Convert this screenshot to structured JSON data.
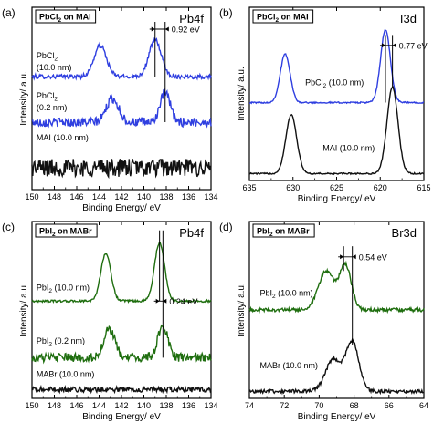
{
  "colors": {
    "blue": "#2f3fe0",
    "black": "#111111",
    "green": "#1f6e0f",
    "frame": "#000000"
  },
  "chart_data": [
    {
      "panel_label": "(a)",
      "type": "line",
      "legend_box": "PbCl2 on MAI",
      "core_level": "Pb4f",
      "xlabel": "Binding Energy/ eV",
      "ylabel": "Intensity/ a.u.",
      "xlim": [
        150,
        134
      ],
      "xticks": [
        150,
        148,
        146,
        144,
        142,
        140,
        138,
        136,
        134
      ],
      "xtick_labels": [
        "150",
        "148",
        "146",
        "144",
        "142",
        "140",
        "138",
        "136",
        "134"
      ],
      "ylim": [
        0,
        1
      ],
      "annotations": [
        {
          "text": "0.92 eV",
          "x1": 139.0,
          "x2": 138.1,
          "y": 0.88
        }
      ],
      "series": [
        {
          "label_lines": [
            "PbCl2",
            "(10.0 nm)"
          ],
          "color": "blue",
          "offset": 0.62,
          "noise": 0.012,
          "peaks": [
            {
              "x": 143.9,
              "height": 0.17,
              "width": 0.55
            },
            {
              "x": 139.0,
              "height": 0.2,
              "width": 0.55
            }
          ],
          "label_pos": {
            "x": 149.6,
            "y": 0.72
          }
        },
        {
          "label_lines": [
            "PbCl2",
            "(0.2 nm)"
          ],
          "color": "blue",
          "offset": 0.37,
          "noise": 0.025,
          "peaks": [
            {
              "x": 142.8,
              "height": 0.13,
              "width": 0.55
            },
            {
              "x": 138.1,
              "height": 0.16,
              "width": 0.45
            }
          ],
          "label_pos": {
            "x": 149.6,
            "y": 0.5
          }
        },
        {
          "label_lines": [
            "MAI (10.0 nm)"
          ],
          "color": "black",
          "offset": 0.12,
          "noise": 0.05,
          "peaks": [],
          "label_pos": {
            "x": 149.6,
            "y": 0.27
          }
        }
      ],
      "marker_lines": [
        {
          "x": 139.0,
          "y1": 0.62,
          "y2": 0.92
        },
        {
          "x": 138.1,
          "y1": 0.37,
          "y2": 0.92
        }
      ]
    },
    {
      "panel_label": "(b)",
      "type": "line",
      "legend_box": "PbCl2 on MAI",
      "core_level": "I3d",
      "xlabel": "Binding Energy/ eV",
      "ylabel": "Intensity/ a.u.",
      "xlim": [
        635,
        615
      ],
      "xticks": [
        635,
        630,
        625,
        620,
        615
      ],
      "xtick_labels": [
        "635",
        "630",
        "625",
        "620",
        "615"
      ],
      "ylim": [
        0,
        1
      ],
      "annotations": [
        {
          "text": "0.77 eV",
          "x1": 619.4,
          "x2": 618.6,
          "y": 0.78
        }
      ],
      "series": [
        {
          "label_lines": [
            "PbCl2 (10.0 nm)"
          ],
          "color": "blue",
          "offset": 0.45,
          "noise": 0.004,
          "peaks": [
            {
              "x": 630.9,
              "height": 0.28,
              "width": 0.45
            },
            {
              "x": 619.4,
              "height": 0.42,
              "width": 0.45
            }
          ],
          "label_pos": {
            "x": 628.6,
            "y": 0.55
          }
        },
        {
          "label_lines": [
            "MAI (10.0 nm)"
          ],
          "color": "black",
          "offset": 0.04,
          "noise": 0.004,
          "peaks": [
            {
              "x": 630.2,
              "height": 0.34,
              "width": 0.5
            },
            {
              "x": 618.6,
              "height": 0.5,
              "width": 0.5
            }
          ],
          "label_pos": {
            "x": 626.6,
            "y": 0.17
          }
        }
      ],
      "marker_lines": [
        {
          "x": 619.4,
          "y1": 0.45,
          "y2": 0.84
        },
        {
          "x": 618.6,
          "y1": 0.54,
          "y2": 0.84
        }
      ]
    },
    {
      "panel_label": "(c)",
      "type": "line",
      "legend_box": "PbI2 on MABr",
      "core_level": "Pb4f",
      "xlabel": "Binding Energy/ eV",
      "ylabel": "Intensity/ a.u.",
      "xlim": [
        150,
        134
      ],
      "xticks": [
        150,
        148,
        146,
        144,
        142,
        140,
        138,
        136,
        134
      ],
      "xtick_labels": [
        "150",
        "148",
        "146",
        "144",
        "142",
        "140",
        "138",
        "136",
        "134"
      ],
      "ylim": [
        0,
        1
      ],
      "annotations": [
        {
          "text": "0.24 eV",
          "x1": 138.6,
          "x2": 138.3,
          "y": 0.55
        }
      ],
      "series": [
        {
          "label_lines": [
            "PbI2 (10.0 nm)"
          ],
          "color": "green",
          "offset": 0.55,
          "noise": 0.006,
          "peaks": [
            {
              "x": 143.4,
              "height": 0.27,
              "width": 0.45
            },
            {
              "x": 138.6,
              "height": 0.33,
              "width": 0.45
            }
          ],
          "label_pos": {
            "x": 149.6,
            "y": 0.61
          }
        },
        {
          "label_lines": [
            "PbI2 (0.2 nm)"
          ],
          "color": "green",
          "offset": 0.23,
          "noise": 0.025,
          "peaks": [
            {
              "x": 143.1,
              "height": 0.16,
              "width": 0.5
            },
            {
              "x": 138.3,
              "height": 0.18,
              "width": 0.45
            }
          ],
          "label_pos": {
            "x": 149.6,
            "y": 0.31
          }
        },
        {
          "label_lines": [
            "MABr (10.0 nm)"
          ],
          "color": "black",
          "offset": 0.05,
          "noise": 0.015,
          "peaks": [],
          "label_pos": {
            "x": 149.6,
            "y": 0.12
          }
        }
      ],
      "marker_lines": [
        {
          "x": 138.6,
          "y1": 0.55,
          "y2": 0.95
        },
        {
          "x": 138.3,
          "y1": 0.23,
          "y2": 0.95
        }
      ]
    },
    {
      "panel_label": "(d)",
      "type": "line",
      "legend_box": "PbI2 on MABr",
      "core_level": "Br3d",
      "xlabel": "Binding Energy/ eV",
      "ylabel": "Intensity/ a.u.",
      "xlim": [
        74,
        64
      ],
      "xticks": [
        74,
        72,
        70,
        68,
        66,
        64
      ],
      "xtick_labels": [
        "74",
        "72",
        "70",
        "68",
        "66",
        "64"
      ],
      "ylim": [
        0,
        1
      ],
      "annotations": [
        {
          "text": "0.54 eV",
          "x1": 68.6,
          "x2": 68.1,
          "y": 0.8
        }
      ],
      "series": [
        {
          "label_lines": [
            "PbI2 (10.0 nm)"
          ],
          "color": "green",
          "offset": 0.5,
          "noise": 0.01,
          "peaks": [
            {
              "x": 69.6,
              "height": 0.22,
              "width": 0.7
            },
            {
              "x": 68.5,
              "height": 0.25,
              "width": 0.55
            }
          ],
          "label_pos": {
            "x": 73.4,
            "y": 0.58
          }
        },
        {
          "label_lines": [
            "MABr (10.0 nm)"
          ],
          "color": "black",
          "offset": 0.04,
          "noise": 0.01,
          "peaks": [
            {
              "x": 69.2,
              "height": 0.18,
              "width": 0.7
            },
            {
              "x": 68.1,
              "height": 0.28,
              "width": 0.6
            }
          ],
          "label_pos": {
            "x": 73.4,
            "y": 0.17
          }
        }
      ],
      "marker_lines": [
        {
          "x": 68.6,
          "y1": 0.72,
          "y2": 0.86
        },
        {
          "x": 68.1,
          "y1": 0.3,
          "y2": 0.86
        }
      ]
    }
  ]
}
